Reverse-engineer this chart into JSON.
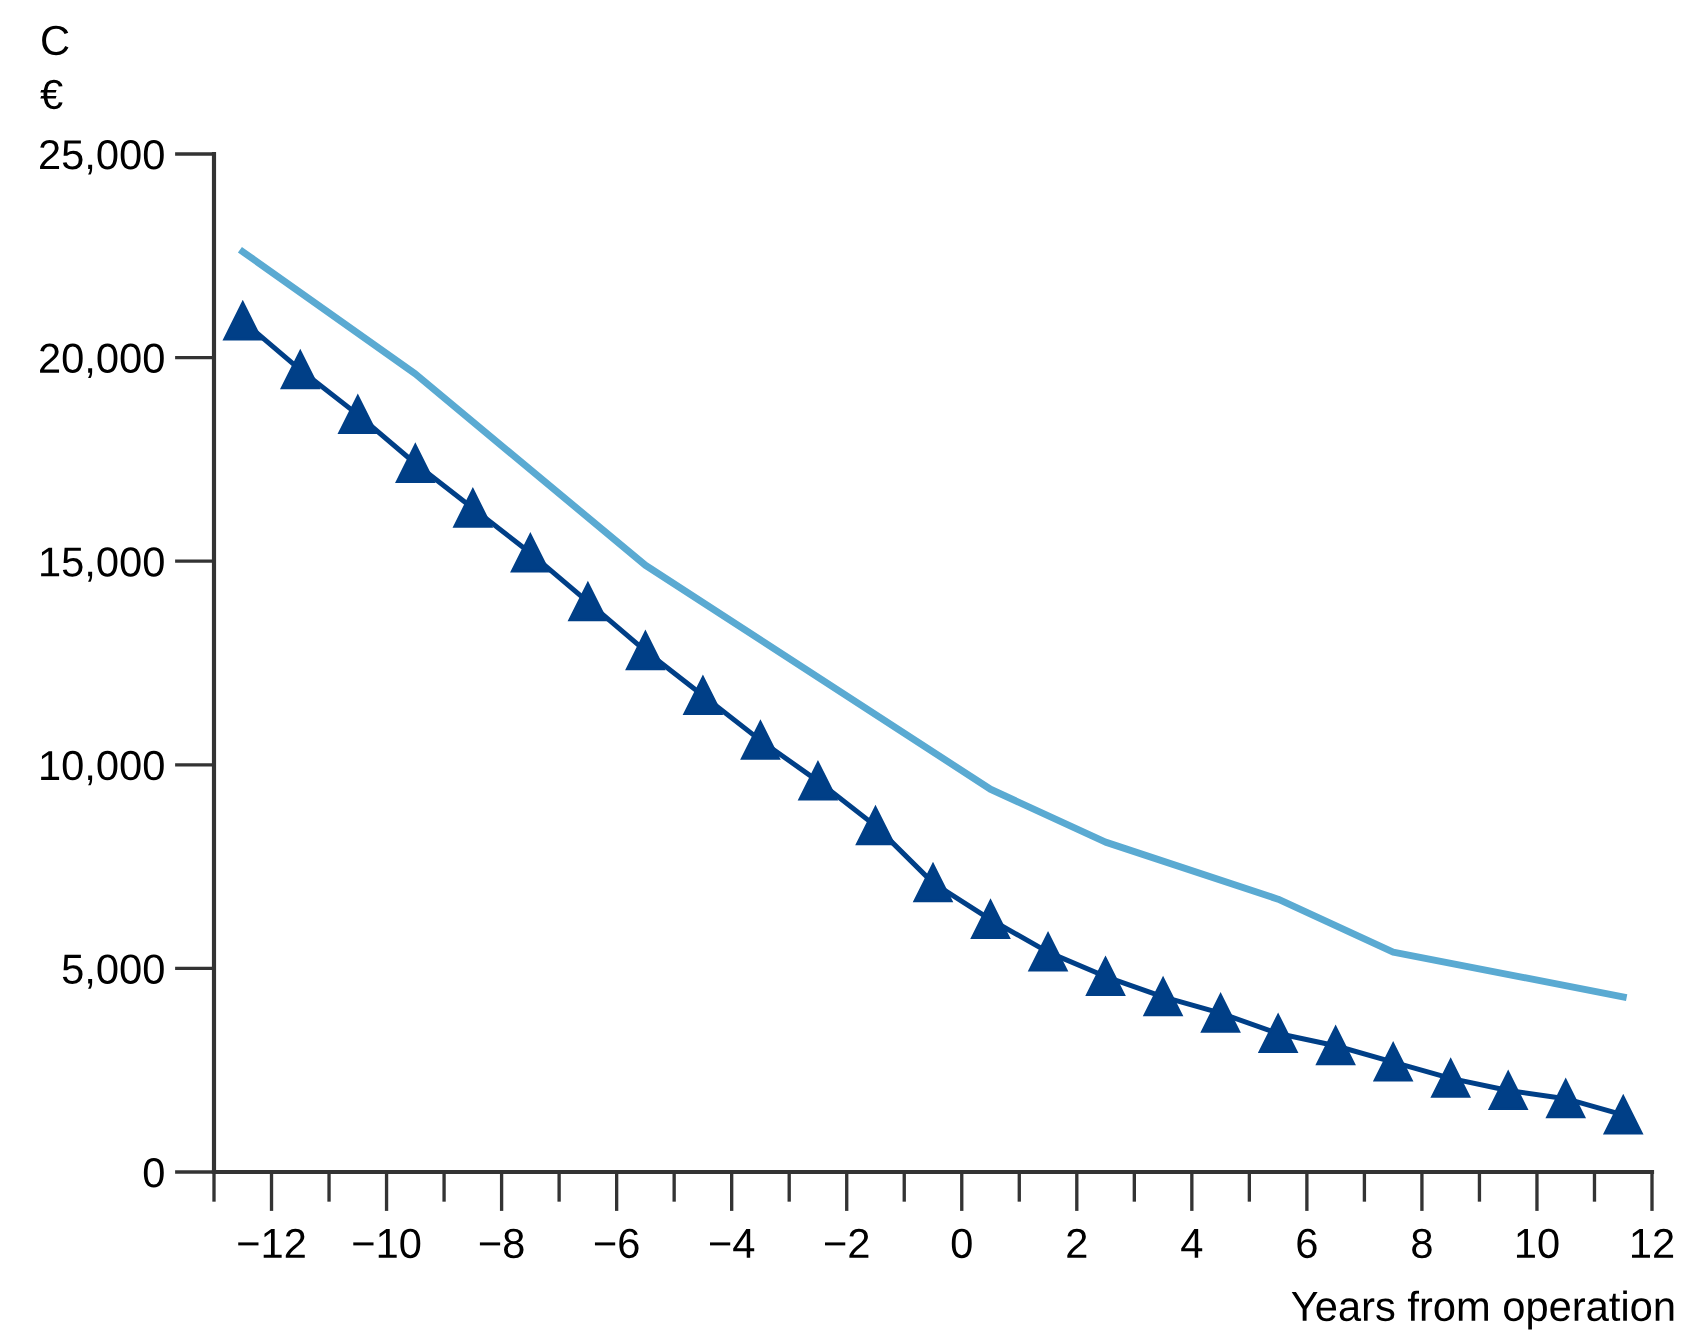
{
  "chart_data": {
    "type": "line",
    "title": "C",
    "ylabel": "€",
    "xlabel": "Years from operation",
    "series": [
      {
        "color": "#5aaad2",
        "x": [
          -12.5,
          -9.5,
          -5.5,
          0.5,
          2.5,
          5.5,
          7.5,
          11.5
        ],
        "values": [
          22600,
          19600,
          14900,
          9400,
          8100,
          6700,
          5400,
          4300
        ]
      },
      {
        "color": "#003f87",
        "marker": "triangle",
        "x": [
          -12.5,
          -11.5,
          -10.5,
          -9.5,
          -8.5,
          -7.5,
          -6.5,
          -5.5,
          -4.5,
          -3.5,
          -2.5,
          -1.5,
          -0.5,
          0.5,
          1.5,
          2.5,
          3.5,
          4.5,
          5.5,
          6.5,
          7.5,
          8.5,
          9.5,
          10.5,
          11.5
        ],
        "values": [
          20900,
          19700,
          18600,
          17400,
          16300,
          15200,
          14000,
          12800,
          11700,
          10600,
          9600,
          8500,
          7100,
          6200,
          5400,
          4800,
          4300,
          3900,
          3400,
          3100,
          2700,
          2300,
          2000,
          1800,
          1400
        ]
      }
    ],
    "xlim": [
      -13,
      12
    ],
    "xticks": [
      {
        "value": -13,
        "label": null
      },
      {
        "value": -12,
        "label": "−12"
      },
      {
        "value": -11,
        "label": null
      },
      {
        "value": -10,
        "label": "−10"
      },
      {
        "value": -9,
        "label": null
      },
      {
        "value": -8,
        "label": "−8"
      },
      {
        "value": -7,
        "label": null
      },
      {
        "value": -6,
        "label": "−6"
      },
      {
        "value": -5,
        "label": null
      },
      {
        "value": -4,
        "label": "−4"
      },
      {
        "value": -3,
        "label": null
      },
      {
        "value": -2,
        "label": "−2"
      },
      {
        "value": -1,
        "label": null
      },
      0,
      {
        "value": 1,
        "label": null
      },
      2,
      {
        "value": 3,
        "label": null
      },
      4,
      {
        "value": 5,
        "label": null
      },
      6,
      {
        "value": 7,
        "label": null
      },
      8,
      {
        "value": 9,
        "label": null
      },
      10,
      {
        "value": 11,
        "label": null
      },
      12
    ],
    "ylim": [
      0,
      25000
    ],
    "yticks": [
      0,
      {
        "value": 5000,
        "label": "5,000"
      },
      {
        "value": 10000,
        "label": "10,000"
      },
      {
        "value": 15000,
        "label": "15,000"
      },
      {
        "value": 20000,
        "label": "20,000"
      },
      {
        "value": 25000,
        "label": "25,000"
      }
    ],
    "grid": false,
    "legend": false
  }
}
